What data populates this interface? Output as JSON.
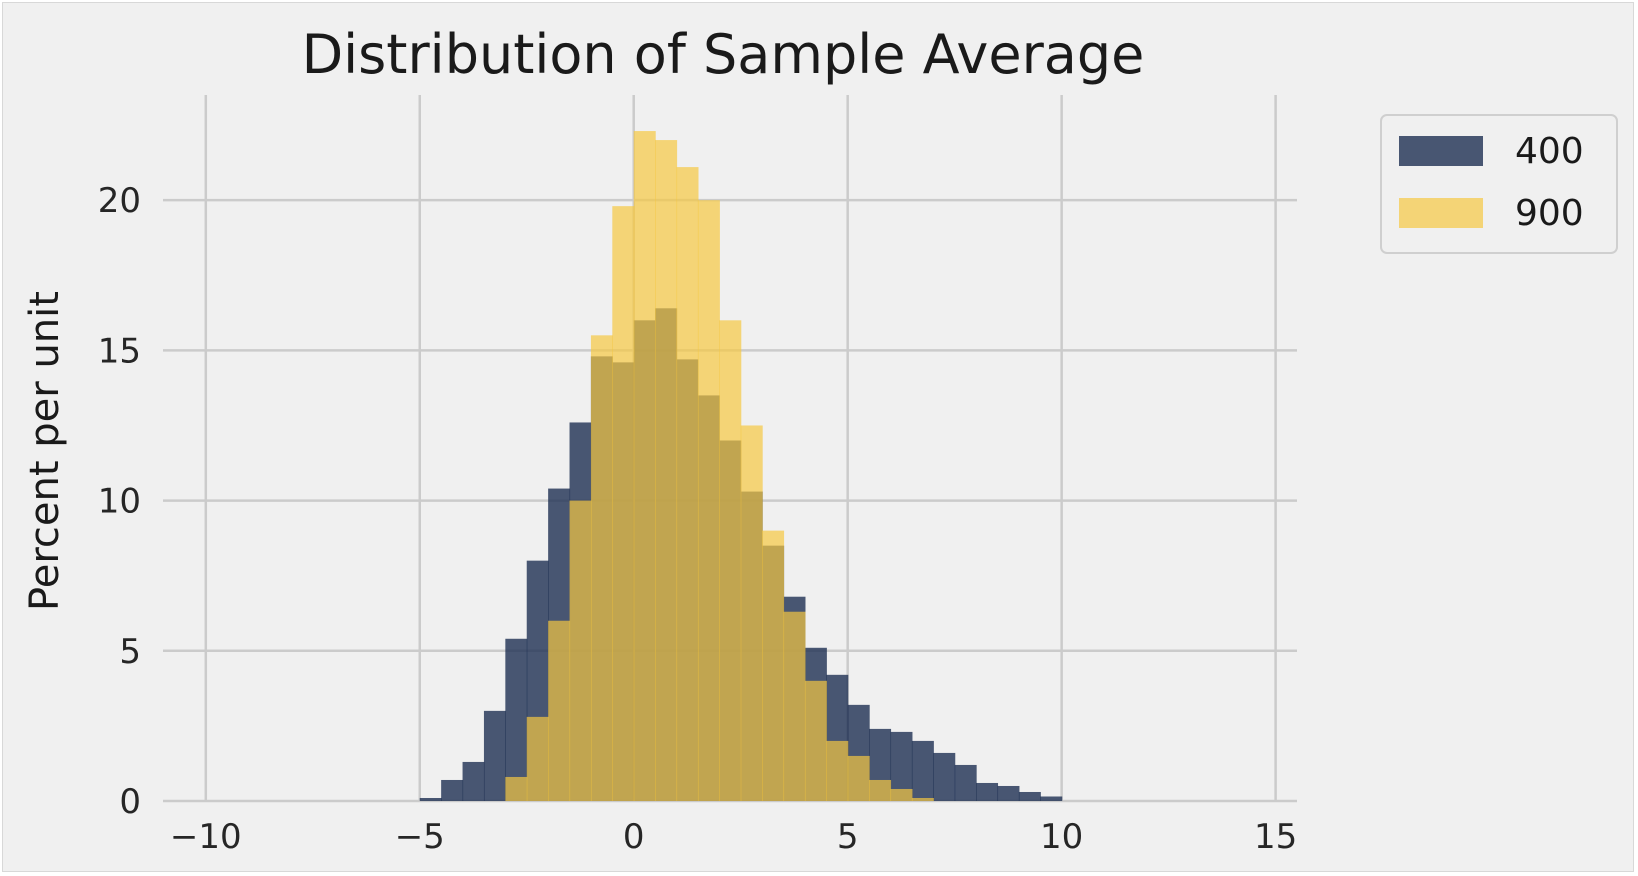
{
  "chart_data": {
    "type": "bar",
    "title": "Distribution of Sample Average",
    "xlabel": "",
    "ylabel": "Percent per unit",
    "xlim": [
      -11,
      15.5
    ],
    "ylim": [
      0,
      23.5
    ],
    "x_ticks": [
      -10,
      -5,
      0,
      5,
      10,
      15
    ],
    "x_tick_labels": [
      "−10",
      "−5",
      "0",
      "5",
      "10",
      "15"
    ],
    "y_ticks": [
      0,
      5,
      10,
      15,
      20
    ],
    "y_tick_labels": [
      "0",
      "5",
      "10",
      "15",
      "20"
    ],
    "grid": true,
    "legend_position": "outside-top-right",
    "bin_start": -5,
    "bin_width": 0.5,
    "series": [
      {
        "name": "400",
        "color": "#1e2f52",
        "values": [
          0.1,
          0.7,
          1.3,
          3.0,
          5.4,
          8.0,
          10.4,
          12.6,
          14.8,
          14.6,
          16.0,
          16.4,
          14.7,
          13.5,
          12.0,
          10.3,
          8.5,
          6.8,
          5.1,
          4.2,
          3.2,
          2.4,
          2.3,
          2.0,
          1.6,
          1.2,
          0.6,
          0.5,
          0.3,
          0.15
        ]
      },
      {
        "name": "900",
        "color": "#f5c842",
        "values": [
          0,
          0,
          0,
          0.0,
          0.8,
          2.8,
          6.0,
          10.0,
          15.5,
          19.8,
          22.3,
          22.0,
          21.1,
          20.0,
          16.0,
          12.5,
          9.0,
          6.3,
          4.0,
          2.0,
          1.5,
          0.7,
          0.4,
          0.1,
          0,
          0,
          0,
          0,
          0,
          0
        ]
      }
    ]
  }
}
